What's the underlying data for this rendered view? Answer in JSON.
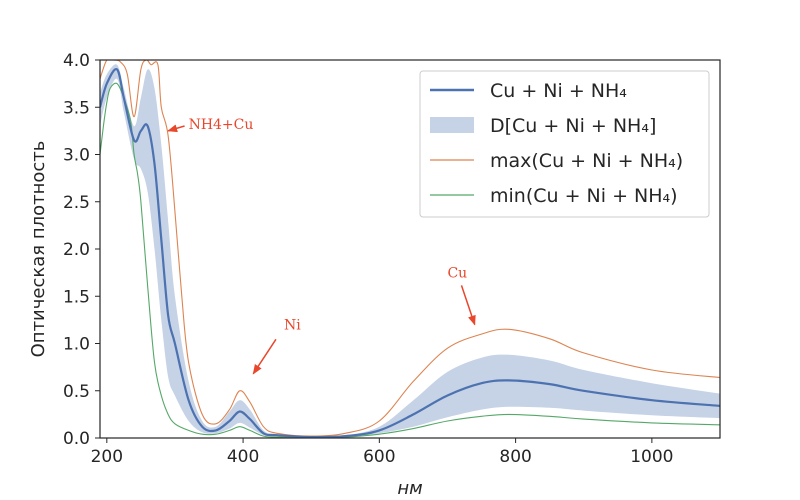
{
  "chart_data": {
    "type": "line",
    "title": "",
    "xlabel": "нм",
    "ylabel": "Оптическая плотность",
    "xlim": [
      190,
      1100
    ],
    "ylim": [
      0,
      4.0
    ],
    "x_ticks": [
      200,
      400,
      600,
      800,
      1000
    ],
    "x_tick_labels": [
      "200",
      "400",
      "600",
      "800",
      "1000"
    ],
    "y_ticks": [
      0.0,
      0.5,
      1.0,
      1.5,
      2.0,
      2.5,
      3.0,
      3.5,
      4.0
    ],
    "y_tick_labels": [
      "0.0",
      "0.5",
      "1.0",
      "1.5",
      "2.0",
      "2.5",
      "3.0",
      "3.5",
      "4.0"
    ],
    "grid": false,
    "legend_position": "top-right",
    "legend": [
      {
        "label": "Cu + Ni + NH₄",
        "kind": "line",
        "color": "#4c72b0"
      },
      {
        "label": "D[Cu + Ni + NH₄]",
        "kind": "patch",
        "color": "#c6d2e6"
      },
      {
        "label": "max(Cu + Ni + NH₄)",
        "kind": "line",
        "color": "#dd8452"
      },
      {
        "label": "min(Cu + Ni + NH₄)",
        "kind": "line",
        "color": "#55a868"
      }
    ],
    "series": [
      {
        "role": "mean",
        "color": "#4c72b0",
        "x": [
          190,
          200,
          215,
          225,
          240,
          250,
          260,
          270,
          280,
          290,
          300,
          320,
          340,
          360,
          380,
          395,
          410,
          430,
          450,
          500,
          550,
          600,
          650,
          700,
          750,
          790,
          850,
          900,
          1000,
          1100
        ],
        "y": [
          3.5,
          3.75,
          3.9,
          3.6,
          3.15,
          3.25,
          3.3,
          2.9,
          2.1,
          1.3,
          1.0,
          0.4,
          0.12,
          0.08,
          0.18,
          0.28,
          0.2,
          0.05,
          0.03,
          0.01,
          0.02,
          0.08,
          0.25,
          0.45,
          0.58,
          0.61,
          0.57,
          0.5,
          0.4,
          0.34
        ]
      },
      {
        "role": "band_upper",
        "color": "#c6d2e6",
        "x": [
          190,
          200,
          215,
          225,
          240,
          250,
          260,
          270,
          280,
          290,
          300,
          320,
          340,
          360,
          380,
          395,
          410,
          430,
          450,
          500,
          550,
          600,
          650,
          700,
          750,
          790,
          850,
          900,
          1000,
          1100
        ],
        "y": [
          3.65,
          3.85,
          3.95,
          3.7,
          3.3,
          3.6,
          3.9,
          3.7,
          3.1,
          2.3,
          1.5,
          0.6,
          0.18,
          0.12,
          0.28,
          0.4,
          0.3,
          0.08,
          0.04,
          0.015,
          0.03,
          0.12,
          0.4,
          0.7,
          0.85,
          0.88,
          0.82,
          0.72,
          0.58,
          0.47
        ]
      },
      {
        "role": "band_lower",
        "color": "#c6d2e6",
        "x": [
          190,
          200,
          215,
          225,
          240,
          250,
          260,
          270,
          280,
          290,
          300,
          320,
          340,
          360,
          380,
          395,
          410,
          430,
          450,
          500,
          550,
          600,
          650,
          700,
          750,
          790,
          850,
          900,
          1000,
          1100
        ],
        "y": [
          3.3,
          3.6,
          3.8,
          3.45,
          2.95,
          2.85,
          2.6,
          2.0,
          1.25,
          0.65,
          0.45,
          0.18,
          0.06,
          0.05,
          0.1,
          0.16,
          0.11,
          0.03,
          0.02,
          0.005,
          0.01,
          0.05,
          0.12,
          0.22,
          0.3,
          0.33,
          0.32,
          0.29,
          0.24,
          0.21
        ]
      },
      {
        "role": "max",
        "color": "#dd8452",
        "x": [
          190,
          200,
          210,
          220,
          230,
          240,
          250,
          258,
          265,
          275,
          280,
          290,
          300,
          310,
          320,
          340,
          360,
          380,
          395,
          410,
          430,
          450,
          500,
          550,
          600,
          650,
          700,
          750,
          790,
          850,
          900,
          1000,
          1100
        ],
        "y": [
          3.8,
          4.0,
          4.0,
          3.98,
          3.85,
          3.4,
          3.9,
          4.0,
          3.95,
          3.95,
          3.5,
          3.2,
          2.4,
          1.5,
          0.8,
          0.25,
          0.15,
          0.3,
          0.5,
          0.38,
          0.12,
          0.05,
          0.02,
          0.05,
          0.18,
          0.6,
          0.95,
          1.1,
          1.15,
          1.05,
          0.9,
          0.72,
          0.64
        ]
      },
      {
        "role": "min",
        "color": "#55a868",
        "x": [
          190,
          195,
          200,
          205,
          215,
          225,
          235,
          240,
          245,
          250,
          260,
          270,
          280,
          290,
          300,
          320,
          340,
          360,
          380,
          395,
          410,
          430,
          450,
          500,
          550,
          600,
          650,
          700,
          750,
          790,
          850,
          900,
          1000,
          1100
        ],
        "y": [
          3.0,
          3.3,
          3.55,
          3.7,
          3.75,
          3.6,
          3.35,
          3.0,
          2.8,
          2.5,
          1.6,
          0.8,
          0.45,
          0.25,
          0.15,
          0.08,
          0.04,
          0.04,
          0.08,
          0.12,
          0.08,
          0.02,
          0.01,
          0.005,
          0.01,
          0.04,
          0.1,
          0.18,
          0.23,
          0.25,
          0.23,
          0.2,
          0.16,
          0.14
        ]
      }
    ],
    "annotations": [
      {
        "text": "NH4+Cu",
        "color": "#e8472c",
        "text_x": 320,
        "text_y": 3.27,
        "arrow_x": 290,
        "arrow_y": 3.25
      },
      {
        "text": "Ni",
        "color": "#e8472c",
        "text_x": 460,
        "text_y": 1.15,
        "arrow_x": 415,
        "arrow_y": 0.68
      },
      {
        "text": "Cu",
        "color": "#e8472c",
        "text_x": 700,
        "text_y": 1.7,
        "arrow_x": 740,
        "arrow_y": 1.2
      }
    ]
  }
}
